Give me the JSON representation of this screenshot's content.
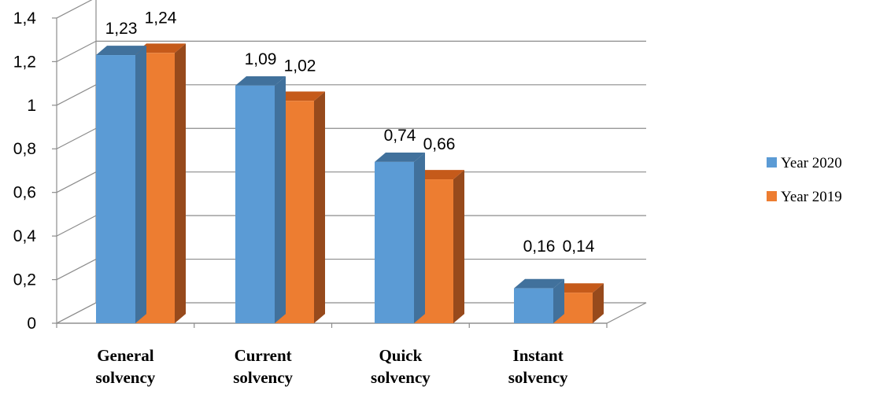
{
  "chart_data": {
    "type": "bar",
    "style": "3d-clustered-column",
    "categories": [
      [
        "General",
        "solvency"
      ],
      [
        "Current",
        "solvency"
      ],
      [
        "Quick",
        "solvency"
      ],
      [
        "Instant",
        "solvency"
      ]
    ],
    "series": [
      {
        "name": "Year 2020",
        "values": [
          1.23,
          1.09,
          0.74,
          0.16
        ],
        "labels": [
          "1,23",
          "1,09",
          "0,74",
          "0,16"
        ],
        "color": "#5b9bd5",
        "top_color": "#41719c",
        "side_color": "#41719c"
      },
      {
        "name": "Year 2019",
        "values": [
          1.24,
          1.02,
          0.66,
          0.14
        ],
        "labels": [
          "1,24",
          "1,02",
          "0,66",
          "0,14"
        ],
        "color": "#ed7d31",
        "top_color": "#c55a1a",
        "side_color": "#974a1c"
      }
    ],
    "yticks": [
      {
        "value": 0,
        "label": "0"
      },
      {
        "value": 0.2,
        "label": "0,2"
      },
      {
        "value": 0.4,
        "label": "0,4"
      },
      {
        "value": 0.6,
        "label": "0,6"
      },
      {
        "value": 0.8,
        "label": "0,8"
      },
      {
        "value": 1.0,
        "label": "1"
      },
      {
        "value": 1.2,
        "label": "1,2"
      },
      {
        "value": 1.4,
        "label": "1,4"
      }
    ],
    "ylim": [
      0,
      1.4
    ],
    "grid": true,
    "legend_position": "right"
  }
}
